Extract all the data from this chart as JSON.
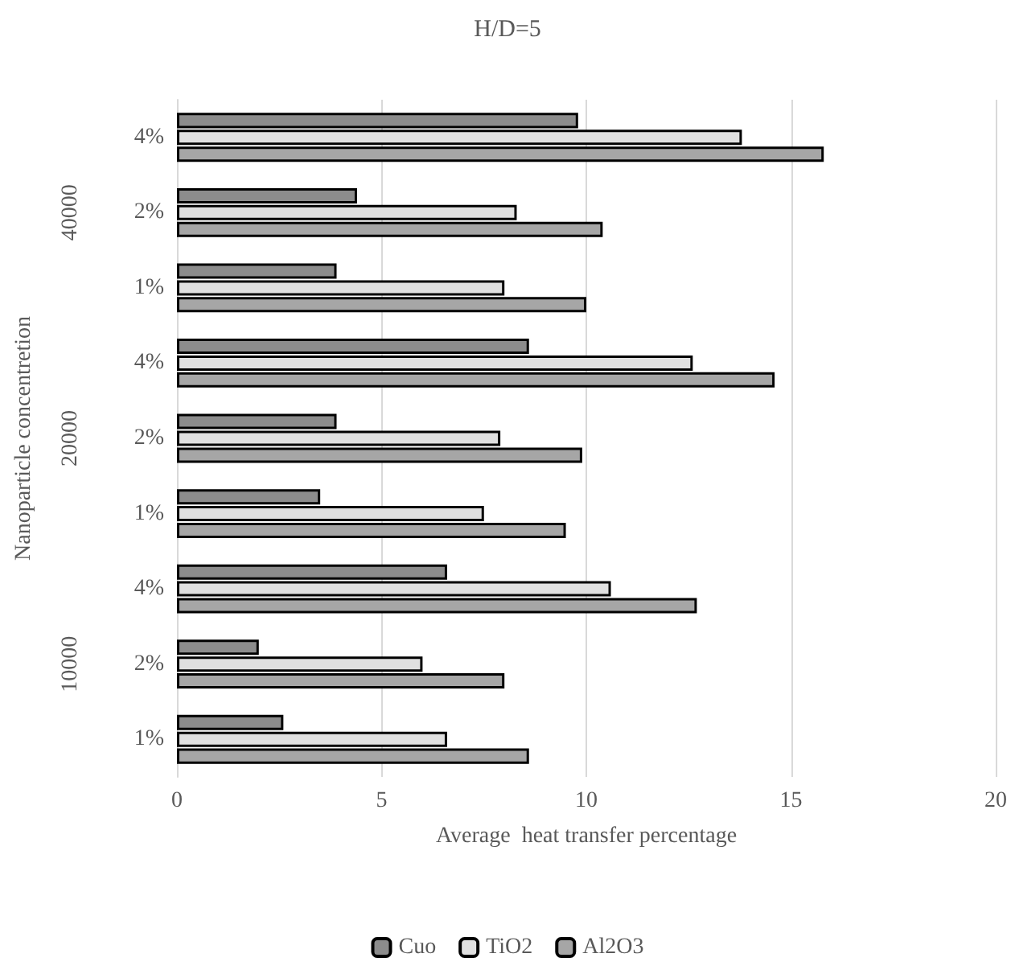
{
  "chart_data": {
    "type": "bar",
    "orientation": "horizontal",
    "title": "H/D=5",
    "xlabel": "Average  heat transfer percentage",
    "ylabel": "Nanoparticle concentretion",
    "categories": [
      "4%",
      "2%",
      "1%",
      "4%",
      "2%",
      "1%",
      "4%",
      "2%",
      "1%"
    ],
    "annotations": [
      "40000",
      "20000",
      "10000"
    ],
    "series": [
      {
        "name": "Cuo",
        "color": "#8c8c8c",
        "values": [
          9.8,
          4.4,
          3.9,
          8.6,
          3.9,
          3.5,
          6.6,
          2.0,
          2.6
        ]
      },
      {
        "name": "TiO2",
        "color": "#e0e0e0",
        "values": [
          13.8,
          8.3,
          8.0,
          12.6,
          7.9,
          7.5,
          10.6,
          6.0,
          6.6
        ]
      },
      {
        "name": "Al2O3",
        "color": "#a6a6a6",
        "values": [
          15.8,
          10.4,
          10.0,
          14.6,
          9.9,
          9.5,
          12.7,
          8.0,
          8.6
        ]
      }
    ],
    "xlim": [
      0,
      20
    ],
    "xticks": [
      0,
      5,
      10,
      15,
      20
    ],
    "grid": "x",
    "legend": "bottom"
  }
}
